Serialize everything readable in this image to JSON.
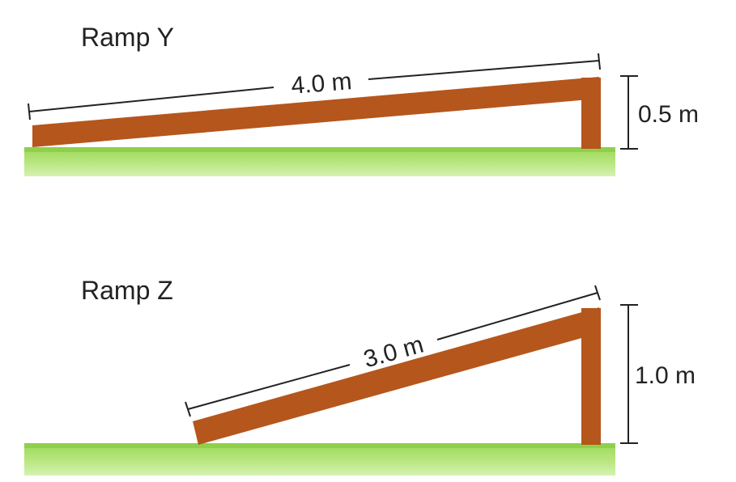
{
  "diagram": {
    "colors": {
      "ramp_wood": "#b5561c",
      "grass_light": "#a8e06a",
      "grass_dark": "#7cc43c",
      "text": "#222222"
    },
    "ramps": [
      {
        "title": "Ramp Y",
        "length_label": "4.0 m",
        "height_label": "0.5 m"
      },
      {
        "title": "Ramp Z",
        "length_label": "3.0 m",
        "height_label": "1.0 m"
      }
    ]
  }
}
